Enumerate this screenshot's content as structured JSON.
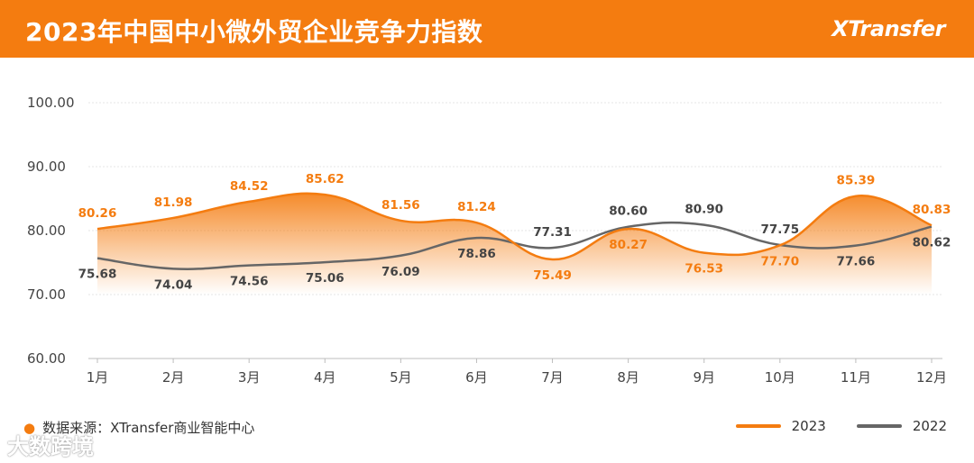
{
  "header": {
    "title": "2023年中国中小微外贸企业竞争力指数",
    "brand": "XTransfer"
  },
  "footer": {
    "source": "数据来源：XTransfer商业智能中心",
    "watermark": "大数跨境"
  },
  "colors": {
    "header_bg": "#f47c10",
    "series_2023": "#f47c10",
    "series_2022": "#666666",
    "grid": "#e4e4e4"
  },
  "chart_data": {
    "type": "line",
    "title": "2023年中国中小微外贸企业竞争力指数",
    "categories": [
      "1月",
      "2月",
      "3月",
      "4月",
      "5月",
      "6月",
      "7月",
      "8月",
      "9月",
      "10月",
      "11月",
      "12月"
    ],
    "y_ticks": [
      "100.00",
      "90.00",
      "80.00",
      "70.00",
      "60.00"
    ],
    "ylim": [
      60,
      100
    ],
    "grid": true,
    "legend_position": "bottom-right",
    "series": [
      {
        "name": "2023",
        "values": [
          80.26,
          81.98,
          84.52,
          85.62,
          81.56,
          81.24,
          75.49,
          80.27,
          76.53,
          77.7,
          85.39,
          80.83
        ],
        "labels": [
          "80.26",
          "81.98",
          "84.52",
          "85.62",
          "81.56",
          "81.24",
          "75.49",
          "80.27",
          "76.53",
          "77.70",
          "85.39",
          "80.83"
        ]
      },
      {
        "name": "2022",
        "values": [
          75.68,
          74.04,
          74.56,
          75.06,
          76.09,
          78.86,
          77.31,
          80.6,
          80.9,
          77.75,
          77.66,
          80.62
        ],
        "labels": [
          "75.68",
          "74.04",
          "74.56",
          "75.06",
          "76.09",
          "78.86",
          "77.31",
          "80.60",
          "80.90",
          "77.75",
          "77.66",
          "80.62"
        ]
      }
    ]
  }
}
